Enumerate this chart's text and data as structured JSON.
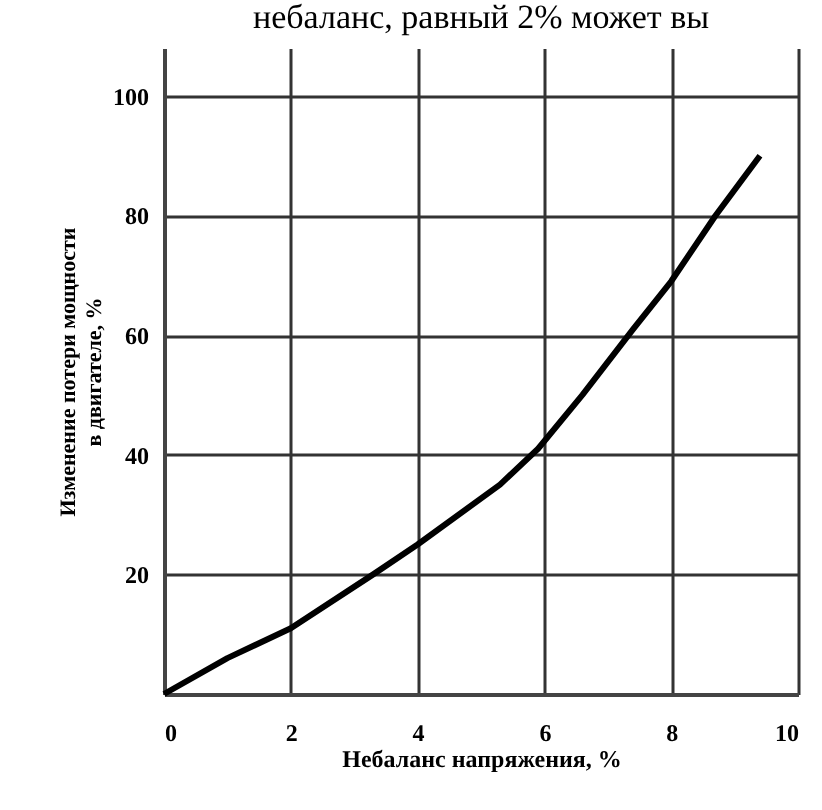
{
  "chart_data": {
    "type": "line",
    "xlabel": "Небаланс напряжения, %",
    "ylabel": "Изменение потери мощности\nв двигателе, %",
    "annotations": [
      "небаланс, равный 2% может вы"
    ],
    "x": [
      0,
      1,
      2,
      3.3,
      4,
      5.3,
      5.9,
      6.6,
      7.4,
      8,
      8.7,
      9.4
    ],
    "series": [
      {
        "color": "#000000",
        "values": [
          0,
          6,
          11,
          20,
          25,
          35,
          41,
          50,
          61,
          69,
          80,
          90
        ]
      }
    ],
    "xlim": [
      0,
      10
    ],
    "ylim": [
      0,
      108
    ],
    "xticks": [
      0,
      2,
      4,
      6,
      8,
      10
    ],
    "yticks": [
      20,
      40,
      60,
      80,
      100
    ],
    "grid": true,
    "line_style": "solid",
    "marker": "none"
  }
}
